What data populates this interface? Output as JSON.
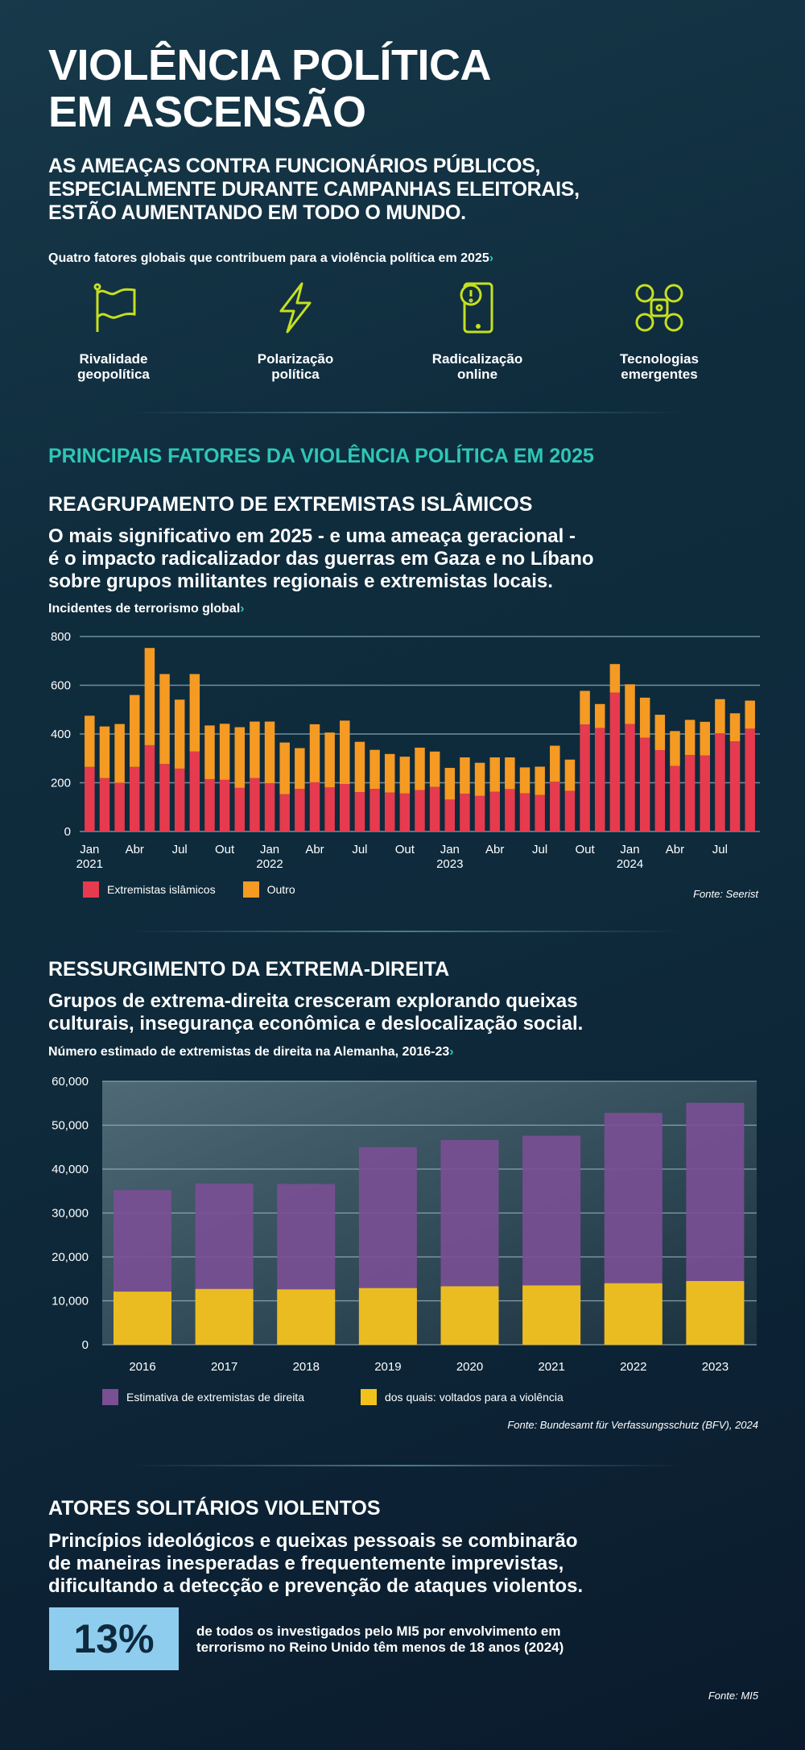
{
  "header": {
    "title_line1": "VIOLÊNCIA POLÍTICA",
    "title_line2": "EM ASCENSÃO",
    "subtitle_lines": [
      "AS AMEAÇAS CONTRA FUNCIONÁRIOS PÚBLICOS,",
      "ESPECIALMENTE DURANTE CAMPANHAS ELEITORAIS,",
      "ESTÃO AUMENTANDO EM TODO O MUNDO."
    ]
  },
  "factors": {
    "label": "Quatro fatores globais que contribuem para a violência política em 2025",
    "chevron": "›",
    "items": [
      {
        "icon": "flag-icon",
        "line1": "Rivalidade",
        "line2": "geopolítica"
      },
      {
        "icon": "lightning-icon",
        "line1": "Polarização",
        "line2": "política"
      },
      {
        "icon": "smartphone-alert-icon",
        "line1": "Radicalização",
        "line2": "online"
      },
      {
        "icon": "drone-icon",
        "line1": "Tecnologias",
        "line2": "emergentes"
      }
    ]
  },
  "colors": {
    "accent": "#2fc6b5",
    "icon": "#c5e020",
    "islamic": "#e63a4e",
    "other": "#f59a23",
    "estimate": "#7a4f94",
    "violent": "#f1c21b",
    "stat_box": "#8fcdef"
  },
  "main_heading": "PRINCIPAIS FATORES DA VIOLÊNCIA POLÍTICA EM 2025",
  "section1": {
    "heading": "REAGRUPAMENTO DE EXTREMISTAS ISLÂMICOS",
    "paragraph_lines": [
      "O mais significativo em 2025 - e uma ameaça geracional -",
      "é o impacto radicalizador das guerras em Gaza e no Líbano",
      "sobre grupos militantes regionais e extremistas locais."
    ],
    "chart_label": "Incidentes de terrorismo global",
    "source": "Fonte: Seerist"
  },
  "section2": {
    "heading": "RESSURGIMENTO DA EXTREMA-DIREITA",
    "paragraph_lines": [
      "Grupos de extrema-direita cresceram explorando queixas",
      "culturais, insegurança econômica e deslocalização social."
    ],
    "chart_label": "Número estimado de extremistas de direita na Alemanha, 2016-23",
    "source": "Fonte: Bundesamt für Verfassungsschutz (BFV), 2024"
  },
  "section3": {
    "heading": "ATORES SOLITÁRIOS VIOLENTOS",
    "paragraph_lines": [
      "Princípios ideológicos e queixas pessoais se combinarão",
      "de maneiras inesperadas e frequentemente imprevistas,",
      "dificultando a detecção e prevenção de ataques violentos."
    ],
    "stat_value": "13%",
    "stat_lines": [
      "de todos os investigados pelo MI5 por envolvimento em",
      "terrorismo no Reino Unido têm menos de 18 anos (2024)"
    ],
    "source": "Fonte: MI5"
  },
  "chart_data": [
    {
      "type": "bar",
      "stacked": true,
      "ylim": [
        0,
        800
      ],
      "yticks": [
        "0",
        "200",
        "400",
        "600",
        "800"
      ],
      "grid": true,
      "legend": "bottom-left",
      "x_labels": [
        "Jan",
        "",
        "",
        "Abr",
        "",
        "",
        "Jul",
        "",
        "",
        "Out",
        "",
        "",
        "Jan",
        "",
        "",
        "Abr",
        "",
        "",
        "Jul",
        "",
        "",
        "Out",
        "",
        "",
        "Jan",
        "",
        "",
        "Abr",
        "",
        "",
        "Jul",
        "",
        "",
        "Out",
        "",
        "",
        "Jan",
        "",
        "",
        "Abr",
        "",
        "",
        "Jul",
        "",
        ""
      ],
      "x_years": [
        "2021",
        "",
        "",
        "",
        "",
        "",
        "",
        "",
        "",
        "",
        "",
        "",
        "2022",
        "",
        "",
        "",
        "",
        "",
        "",
        "",
        "",
        "",
        "",
        "",
        "2023",
        "",
        "",
        "",
        "",
        "",
        "",
        "",
        "",
        "",
        "",
        "",
        "2024",
        "",
        "",
        "",
        "",
        "",
        "",
        "",
        ""
      ],
      "series": [
        {
          "name": "Extremistas islâmicos",
          "values": [
            265,
            219,
            200,
            265,
            354,
            277,
            258,
            328,
            215,
            212,
            179,
            219,
            198,
            153,
            175,
            202,
            181,
            195,
            162,
            175,
            160,
            156,
            170,
            183,
            131,
            155,
            146,
            163,
            174,
            157,
            150,
            204,
            167,
            439,
            425,
            570,
            441,
            385,
            334,
            269,
            314,
            312,
            403,
            370,
            422
          ]
        },
        {
          "name": "Outro",
          "values": [
            210,
            212,
            241,
            295,
            399,
            369,
            283,
            318,
            220,
            230,
            249,
            232,
            253,
            212,
            167,
            238,
            225,
            260,
            206,
            160,
            158,
            151,
            174,
            145,
            130,
            149,
            136,
            141,
            130,
            106,
            116,
            148,
            128,
            138,
            98,
            117,
            163,
            164,
            145,
            143,
            144,
            138,
            140,
            115,
            115
          ]
        }
      ]
    },
    {
      "type": "bar",
      "stacked": false,
      "overlay": true,
      "ylim": [
        0,
        60000
      ],
      "yticks": [
        "0",
        "10,000",
        "20,000",
        "30,000",
        "40,000",
        "50,000",
        "60,000"
      ],
      "grid": true,
      "legend": "bottom-left",
      "categories": [
        "2016",
        "2017",
        "2018",
        "2019",
        "2020",
        "2021",
        "2022",
        "2023"
      ],
      "series": [
        {
          "name": "Estimativa de extremistas de direita",
          "values": [
            35200,
            36700,
            36600,
            45000,
            46600,
            47600,
            52800,
            55100
          ]
        },
        {
          "name": "dos quais: voltados para a violência",
          "values": [
            12100,
            12700,
            12600,
            12900,
            13300,
            13500,
            14000,
            14500
          ]
        }
      ]
    }
  ]
}
